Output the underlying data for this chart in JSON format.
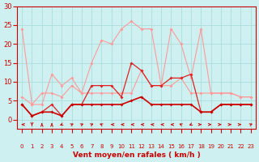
{
  "x": [
    0,
    1,
    2,
    3,
    4,
    5,
    6,
    7,
    8,
    9,
    10,
    11,
    12,
    13,
    14,
    15,
    16,
    17,
    18,
    19,
    20,
    21,
    22,
    23
  ],
  "series": [
    {
      "name": "rafales_light",
      "color": "#ff9999",
      "linewidth": 0.8,
      "markersize": 2.0,
      "y": [
        24,
        4,
        4,
        12,
        9,
        11,
        7,
        15,
        21,
        20,
        24,
        26,
        24,
        24,
        9,
        24,
        20,
        11,
        24,
        7,
        7,
        7,
        6,
        6
      ]
    },
    {
      "name": "moyen_light",
      "color": "#ff9999",
      "linewidth": 0.8,
      "markersize": 2.0,
      "y": [
        6,
        4,
        7,
        7,
        6,
        9,
        7,
        7,
        7,
        7,
        7,
        7,
        13,
        9,
        9,
        9,
        11,
        7,
        7,
        7,
        7,
        7,
        6,
        6
      ]
    },
    {
      "name": "dark_red1",
      "color": "#dd2222",
      "linewidth": 0.9,
      "markersize": 2.0,
      "y": [
        4,
        1,
        2,
        4,
        1,
        4,
        4,
        9,
        9,
        9,
        6,
        15,
        13,
        9,
        9,
        11,
        11,
        12,
        2,
        2,
        4,
        4,
        4,
        4
      ]
    },
    {
      "name": "dark_red2",
      "color": "#cc0000",
      "linewidth": 1.2,
      "markersize": 2.0,
      "y": [
        4,
        1,
        2,
        2,
        1,
        4,
        4,
        4,
        4,
        4,
        4,
        5,
        6,
        4,
        4,
        4,
        4,
        4,
        2,
        2,
        4,
        4,
        4,
        4
      ]
    }
  ],
  "wind_dirs": [
    270,
    180,
    0,
    0,
    225,
    45,
    45,
    45,
    315,
    270,
    270,
    270,
    270,
    270,
    270,
    270,
    315,
    225,
    90,
    90,
    90,
    90,
    90,
    45
  ],
  "xlim": [
    -0.5,
    23.5
  ],
  "ylim": [
    -2.5,
    30
  ],
  "plot_ylim": [
    0,
    30
  ],
  "yticks": [
    0,
    5,
    10,
    15,
    20,
    25,
    30
  ],
  "xticks": [
    0,
    1,
    2,
    3,
    4,
    5,
    6,
    7,
    8,
    9,
    10,
    11,
    12,
    13,
    14,
    15,
    16,
    17,
    18,
    19,
    20,
    21,
    22,
    23
  ],
  "xlabel": "Vent moyen/en rafales ( km/h )",
  "bg_color": "#cef0f0",
  "grid_color": "#aadddd",
  "arrow_color": "#cc0000",
  "label_color": "#cc0000",
  "tick_color": "#cc0000"
}
